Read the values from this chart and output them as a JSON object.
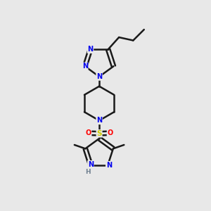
{
  "background_color": "#e8e8e8",
  "atom_colors": {
    "N": "#0000ee",
    "O": "#ff0000",
    "S": "#cccc00",
    "H": "#708090",
    "C": "#1a1a1a"
  },
  "figsize": [
    3.0,
    3.0
  ],
  "dpi": 100,
  "xlim": [
    0,
    10
  ],
  "ylim": [
    0,
    10
  ]
}
